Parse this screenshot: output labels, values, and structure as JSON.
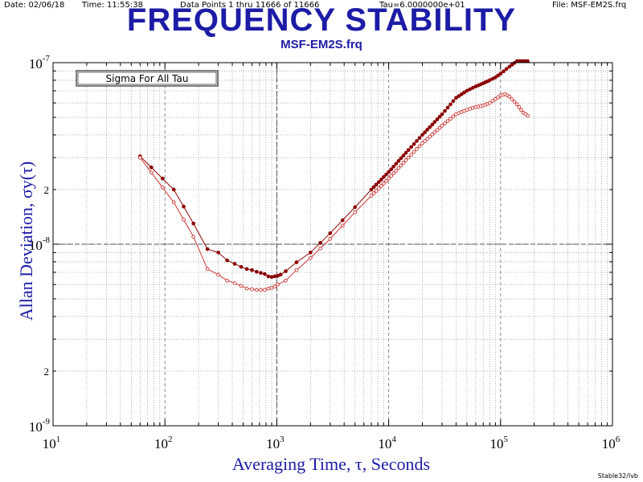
{
  "header": {
    "date": "Date: 02/06/18",
    "time": "Time: 11:55:38",
    "data_points": "Data Points 1 thru 11666 of 11666",
    "tau": "Tau=6.0000000e+01",
    "file": "File: MSF-EM2S.frq"
  },
  "footer": "Stable32/lvb",
  "colors": {
    "title": "#1c1ca6",
    "series_dark": "#8b0000",
    "series_light": "#cc3333",
    "grid": "#808080",
    "reference_line": "#505050"
  },
  "chart_data": {
    "type": "line",
    "title": "FREQUENCY STABILITY",
    "subtitle": "MSF-EM2S.frq",
    "xlabel": "Averaging Time, τ, Seconds",
    "ylabel": "Allan Deviation, σy(τ)",
    "x_scale": "log",
    "y_scale": "log",
    "xlim": [
      10,
      1000000
    ],
    "ylim": [
      1e-09,
      1e-07
    ],
    "x_ticks": [
      {
        "base": "10",
        "exp": "1"
      },
      {
        "base": "10",
        "exp": "2"
      },
      {
        "base": "10",
        "exp": "3"
      },
      {
        "base": "10",
        "exp": "4"
      },
      {
        "base": "10",
        "exp": "5"
      },
      {
        "base": "10",
        "exp": "6"
      }
    ],
    "y_ticks": [
      {
        "value": 1e-09,
        "label": "10",
        "exp": "-9"
      },
      {
        "value": 1e-08,
        "label": "10",
        "exp": "-8"
      },
      {
        "value": 1e-07,
        "label": "10",
        "exp": "-7"
      }
    ],
    "y_minor_labels": [
      {
        "value": 2e-09,
        "label": "2"
      },
      {
        "value": 2e-08,
        "label": "2"
      }
    ],
    "grid": true,
    "legend_box": "Sigma For All Tau",
    "reference_lines": {
      "x": 1000,
      "y": 1e-08
    },
    "series": [
      {
        "style": "filled-markers",
        "x": [
          60,
          120,
          180,
          240,
          300,
          360,
          420,
          480,
          540,
          600,
          660,
          720,
          780,
          840,
          900,
          960,
          1020,
          1080,
          1200,
          1500,
          2000,
          3000,
          5000,
          7000,
          10000,
          15000,
          20000,
          30000,
          40000,
          50000,
          60000,
          70000,
          80000,
          90000,
          100000,
          120000,
          140000,
          160000,
          175000
        ],
        "y": [
          3.05e-08,
          2e-08,
          1.3e-08,
          9.4e-09,
          9e-09,
          8.15e-09,
          7.8e-09,
          7.5e-09,
          7.3e-09,
          7.2e-09,
          7.05e-09,
          6.95e-09,
          6.85e-09,
          6.65e-09,
          6.6e-09,
          6.65e-09,
          6.7e-09,
          6.8e-09,
          7.1e-09,
          7.95e-09,
          9e-09,
          1.15e-08,
          1.6e-08,
          2e-08,
          2.5e-08,
          3.3e-08,
          4e-08,
          5.2e-08,
          6.4e-08,
          7e-08,
          7.4e-08,
          7.7e-08,
          8e-08,
          8.3e-08,
          8.7e-08,
          9.5e-08,
          1.02e-07,
          1.02e-07,
          1.02e-07
        ]
      },
      {
        "style": "open-markers",
        "x": [
          60,
          120,
          180,
          240,
          300,
          360,
          420,
          480,
          540,
          600,
          660,
          720,
          780,
          840,
          900,
          960,
          1020,
          1200,
          1500,
          2000,
          3000,
          5000,
          7000,
          10000,
          15000,
          20000,
          30000,
          40000,
          50000,
          60000,
          70000,
          80000,
          90000,
          100000,
          110000,
          120000,
          140000,
          160000,
          175000
        ],
        "y": [
          3e-08,
          1.7e-08,
          1.1e-08,
          7.3e-09,
          6.8e-09,
          6.3e-09,
          6.1e-09,
          5.9e-09,
          5.7e-09,
          5.65e-09,
          5.6e-09,
          5.6e-09,
          5.6e-09,
          5.7e-09,
          5.75e-09,
          5.85e-09,
          6e-09,
          6.3e-09,
          7.2e-09,
          8.4e-09,
          1.07e-08,
          1.5e-08,
          1.85e-08,
          2.3e-08,
          3e-08,
          3.6e-08,
          4.5e-08,
          5.2e-08,
          5.5e-08,
          5.7e-08,
          5.8e-08,
          6e-08,
          6.3e-08,
          6.6e-08,
          6.7e-08,
          6.5e-08,
          5.9e-08,
          5.3e-08,
          5.1e-08
        ]
      }
    ]
  }
}
